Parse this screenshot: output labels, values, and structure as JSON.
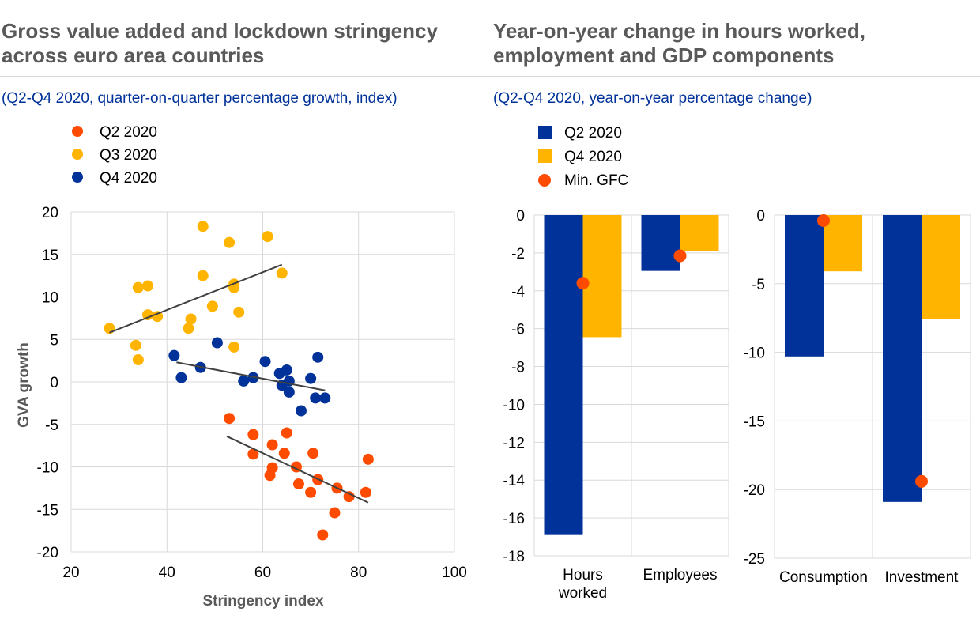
{
  "left_panel": {
    "title_line1": "Gross value added and lockdown stringency",
    "title_line2": "across euro area countries",
    "subtitle": "(Q2-Q4 2020, quarter-on-quarter percentage growth, index)"
  },
  "right_panel": {
    "title_line1": "Year-on-year change in hours worked,",
    "title_line2": "employment and GDP components",
    "subtitle": "(Q2-Q4 2020, year-on-year percentage change)"
  },
  "colors": {
    "q2": "#ff4b00",
    "q3": "#ffb400",
    "q4": "#003299",
    "trend": "#404040",
    "grid": "#d9d9d9",
    "axis_text": "#000000"
  },
  "chart_data": [
    {
      "type": "scatter",
      "xlabel": "Stringency index",
      "ylabel": "GVA growth",
      "xlim": [
        20,
        100
      ],
      "ylim": [
        -20,
        20
      ],
      "xticks": [
        20,
        40,
        60,
        80,
        100
      ],
      "yticks": [
        -20,
        -15,
        -10,
        -5,
        0,
        5,
        10,
        15,
        20
      ],
      "grid": true,
      "legend_position": "top-left",
      "series": [
        {
          "name": "Q2 2020",
          "color_key": "q2",
          "points": [
            [
              53,
              -4.3
            ],
            [
              58,
              -6.2
            ],
            [
              58,
              -8.5
            ],
            [
              62,
              -7.4
            ],
            [
              62,
              -10.1
            ],
            [
              61.5,
              -11
            ],
            [
              64.5,
              -8.4
            ],
            [
              65,
              -6
            ],
            [
              67,
              -10
            ],
            [
              67.5,
              -12
            ],
            [
              70,
              -13
            ],
            [
              70.5,
              -8.4
            ],
            [
              71.5,
              -11.5
            ],
            [
              72.5,
              -18
            ],
            [
              75,
              -15.4
            ],
            [
              75.5,
              -12.5
            ],
            [
              78,
              -13.5
            ],
            [
              81.5,
              -13
            ],
            [
              82,
              -9.1
            ]
          ],
          "trend": [
            [
              52.5,
              -6.4
            ],
            [
              82,
              -14.2
            ]
          ]
        },
        {
          "name": "Q3 2020",
          "color_key": "q3",
          "points": [
            [
              28,
              6.3
            ],
            [
              33.5,
              4.3
            ],
            [
              34,
              11.1
            ],
            [
              34,
              2.6
            ],
            [
              36,
              11.3
            ],
            [
              36,
              7.9
            ],
            [
              38,
              7.7
            ],
            [
              44.5,
              6.3
            ],
            [
              45,
              7.4
            ],
            [
              47.5,
              18.3
            ],
            [
              47.5,
              12.5
            ],
            [
              49.5,
              8.9
            ],
            [
              53,
              16.4
            ],
            [
              54,
              11.5
            ],
            [
              54,
              11.1
            ],
            [
              54,
              4.1
            ],
            [
              55,
              8.2
            ],
            [
              61,
              17.1
            ],
            [
              64,
              12.8
            ]
          ],
          "trend": [
            [
              28,
              5.8
            ],
            [
              64,
              13.8
            ]
          ]
        },
        {
          "name": "Q4 2020",
          "color_key": "q4",
          "points": [
            [
              41.5,
              3.1
            ],
            [
              43,
              0.5
            ],
            [
              47,
              1.7
            ],
            [
              50.5,
              4.6
            ],
            [
              56,
              0.1
            ],
            [
              58,
              0.5
            ],
            [
              60.5,
              2.4
            ],
            [
              63.5,
              1
            ],
            [
              64,
              -0.4
            ],
            [
              65,
              1.4
            ],
            [
              65.5,
              0.1
            ],
            [
              65.5,
              -1.2
            ],
            [
              68,
              -3.4
            ],
            [
              70,
              0.4
            ],
            [
              71,
              -1.9
            ],
            [
              71.5,
              2.9
            ],
            [
              73,
              -1.9
            ]
          ],
          "trend": [
            [
              42,
              2.3
            ],
            [
              73,
              -1
            ]
          ]
        }
      ]
    },
    {
      "type": "bar",
      "categories": [
        "Hours worked",
        "Employees"
      ],
      "category_lines": [
        [
          "Hours",
          "worked"
        ],
        [
          "Employees"
        ]
      ],
      "ylim": [
        -18,
        0
      ],
      "yticks": [
        0,
        -2,
        -4,
        -6,
        -8,
        -10,
        -12,
        -14,
        -16,
        -18
      ],
      "grid": true,
      "legend_position": "top-left",
      "series": [
        {
          "name": "Q2 2020",
          "color_key": "q4",
          "values": [
            -16.9,
            -2.95
          ]
        },
        {
          "name": "Q4 2020",
          "color_key": "q3",
          "values": [
            -6.45,
            -1.9
          ]
        }
      ],
      "markers": {
        "name": "Min. GFC",
        "color_key": "q2",
        "values": [
          -3.6,
          -2.15
        ]
      }
    },
    {
      "type": "bar",
      "categories": [
        "Consumption",
        "Investment"
      ],
      "ylim": [
        -25,
        0
      ],
      "yticks": [
        0,
        -5,
        -10,
        -15,
        -20,
        -25
      ],
      "grid": true,
      "series": [
        {
          "name": "Q2 2020",
          "color_key": "q4",
          "values": [
            -10.3,
            -20.9
          ]
        },
        {
          "name": "Q4 2020",
          "color_key": "q3",
          "values": [
            -4.1,
            -7.6
          ]
        }
      ],
      "markers": {
        "name": "Min. GFC",
        "color_key": "q2",
        "values": [
          -0.4,
          -19.4
        ]
      }
    }
  ]
}
